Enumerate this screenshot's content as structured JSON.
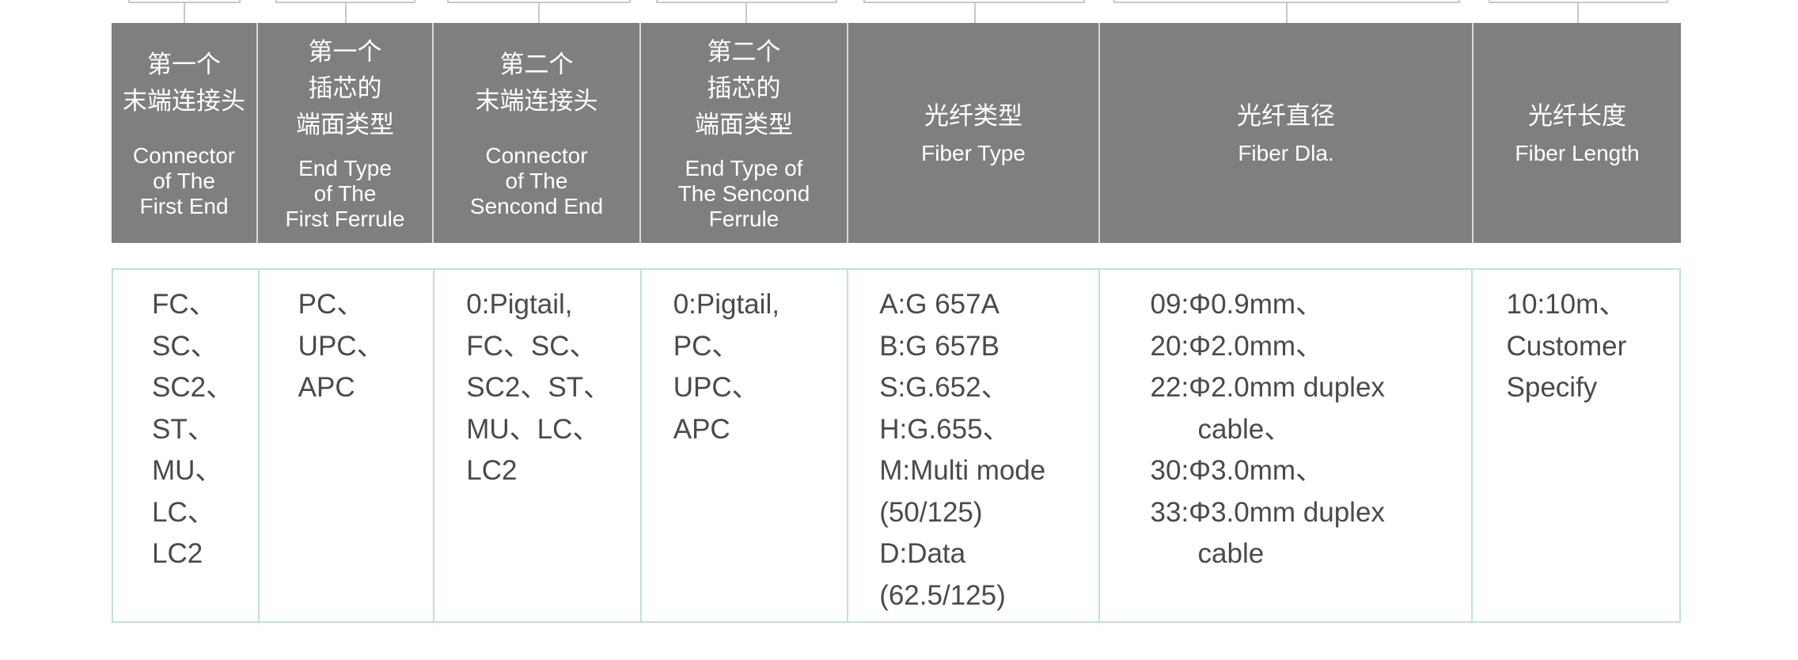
{
  "columns": [
    {
      "cn": [
        "第一个",
        "末端连接头"
      ],
      "en": [
        "Connector",
        "of The",
        "First End"
      ],
      "values": [
        "FC、",
        "SC、",
        "SC2、",
        "ST、",
        "MU、",
        "LC、",
        "LC2"
      ]
    },
    {
      "cn": [
        "第一个",
        "插芯的",
        "端面类型"
      ],
      "en": [
        "End Type",
        "of The",
        "First Ferrule"
      ],
      "values": [
        "PC、",
        "UPC、",
        "APC"
      ]
    },
    {
      "cn": [
        "第二个",
        "末端连接头"
      ],
      "en": [
        "Connector",
        "of The",
        "Sencond End"
      ],
      "values": [
        "0:Pigtail,",
        "FC、SC、",
        "SC2、ST、",
        "MU、LC、",
        "LC2"
      ]
    },
    {
      "cn": [
        "第二个",
        "插芯的",
        "端面类型"
      ],
      "en": [
        "End Type of",
        "The Sencond",
        "Ferrule"
      ],
      "values": [
        "0:Pigtail,",
        "PC、",
        "UPC、",
        "APC"
      ]
    },
    {
      "cn": [
        "光纤类型"
      ],
      "en": [
        "Fiber Type"
      ],
      "values": [
        "A:G 657A",
        "B:G 657B",
        "S:G.652、",
        "H:G.655、",
        "M:Multi mode",
        "(50/125)",
        "D:Data",
        "(62.5/125)"
      ]
    },
    {
      "cn": [
        "光纤直径"
      ],
      "en": [
        "Fiber Dla."
      ],
      "values": [
        "09:Φ0.9mm、",
        "20:Φ2.0mm、",
        "22:Φ2.0mm duplex",
        "cable、",
        "30:Φ3.0mm、",
        "33:Φ3.0mm duplex",
        "cable"
      ]
    },
    {
      "cn": [
        "光纤长度"
      ],
      "en": [
        "Fiber Length"
      ],
      "values": [
        "10:10m、",
        "Customer",
        "Specify"
      ]
    }
  ],
  "colors": {
    "header_bg": "#7f7f7f",
    "header_text": "#ffffff",
    "body_border": "#bfe0dc",
    "body_text": "#4a4a4a"
  }
}
